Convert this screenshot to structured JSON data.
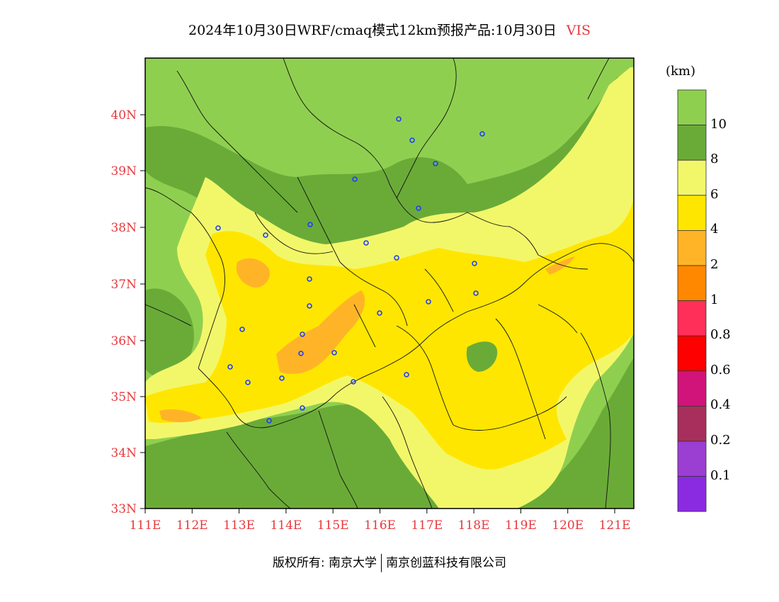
{
  "title": "2024年10月30日WRF/cmaq模式12km预报产品:10月30日",
  "variable": "VIS",
  "unit": "(km)",
  "lat_labels": [
    "40N",
    "39N",
    "38N",
    "37N",
    "36N",
    "35N",
    "34N",
    "33N"
  ],
  "lon_labels": [
    "111E",
    "112E",
    "113E",
    "114E",
    "115E",
    "116E",
    "117E",
    "118E",
    "119E",
    "120E",
    "121E"
  ],
  "legend": {
    "labels": [
      "10",
      "8",
      "6",
      "4",
      "2",
      "1",
      "0.8",
      "0.6",
      "0.4",
      "0.2",
      "0.1"
    ],
    "colors": [
      "#8fcf50",
      "#6aab38",
      "#f2f76a",
      "#ffe600",
      "#ffb428",
      "#ff8800",
      "#ff2f5a",
      "#ff0000",
      "#d0147a",
      "#a82f5c",
      "#9b3ed2",
      "#8a2be2"
    ]
  },
  "footer": {
    "left": "版权所有: 南京大学",
    "right": "南京创蓝科技有限公司"
  },
  "stations_count_visible": 28
}
